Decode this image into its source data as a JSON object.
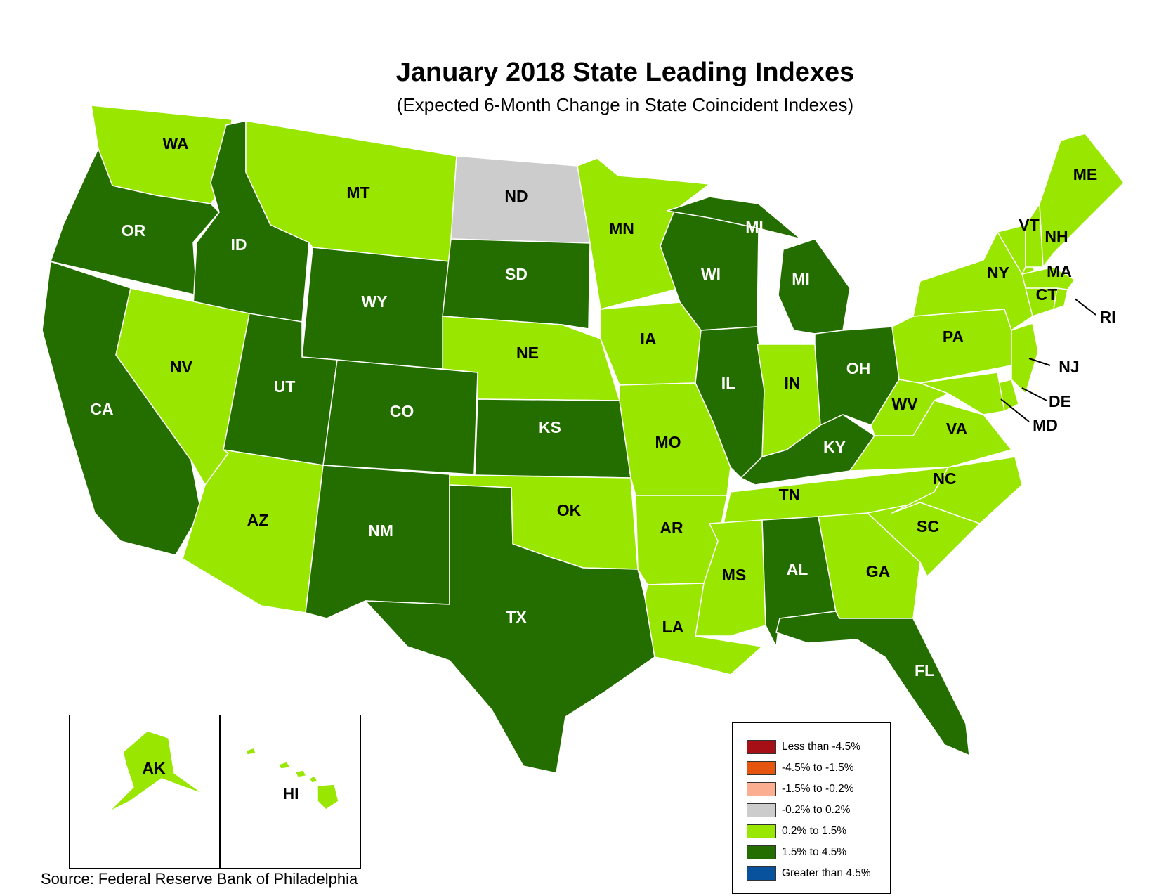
{
  "title": "January 2018 State Leading Indexes",
  "subtitle": "(Expected 6-Month Change in State Coincident Indexes)",
  "source": "Source: Federal Reserve Bank of Philadelphia",
  "colors": {
    "less_than_-4.5": "#a50f15",
    "-4.5_to_-1.5": "#e6550d",
    "-1.5_to_-0.2": "#fcae91",
    "-0.2_to_0.2": "#cccccc",
    "0.2_to_1.5": "#99e600",
    "1.5_to_4.5": "#246e00",
    "greater_than_4.5": "#08519c",
    "border": "#ffffff"
  },
  "legend": [
    {
      "label": "Less than -4.5%",
      "color": "#a50f15"
    },
    {
      "label": "-4.5% to -1.5%",
      "color": "#e6550d"
    },
    {
      "label": "-1.5% to -0.2%",
      "color": "#fcae91"
    },
    {
      "label": "-0.2% to 0.2%",
      "color": "#cccccc"
    },
    {
      "label": "0.2% to 1.5%",
      "color": "#99e600"
    },
    {
      "label": "1.5% to 4.5%",
      "color": "#246e00"
    },
    {
      "label": "Greater than 4.5%",
      "color": "#08519c"
    }
  ],
  "states": [
    {
      "id": "WA",
      "category": "0.2% to 1.5%"
    },
    {
      "id": "OR",
      "category": "1.5% to 4.5%"
    },
    {
      "id": "CA",
      "category": "1.5% to 4.5%"
    },
    {
      "id": "ID",
      "category": "1.5% to 4.5%"
    },
    {
      "id": "NV",
      "category": "0.2% to 1.5%"
    },
    {
      "id": "MT",
      "category": "0.2% to 1.5%"
    },
    {
      "id": "WY",
      "category": "1.5% to 4.5%"
    },
    {
      "id": "UT",
      "category": "1.5% to 4.5%"
    },
    {
      "id": "AZ",
      "category": "0.2% to 1.5%"
    },
    {
      "id": "CO",
      "category": "1.5% to 4.5%"
    },
    {
      "id": "NM",
      "category": "1.5% to 4.5%"
    },
    {
      "id": "ND",
      "category": "-0.2% to 0.2%"
    },
    {
      "id": "SD",
      "category": "1.5% to 4.5%"
    },
    {
      "id": "NE",
      "category": "0.2% to 1.5%"
    },
    {
      "id": "KS",
      "category": "1.5% to 4.5%"
    },
    {
      "id": "OK",
      "category": "0.2% to 1.5%"
    },
    {
      "id": "TX",
      "category": "1.5% to 4.5%"
    },
    {
      "id": "MN",
      "category": "0.2% to 1.5%"
    },
    {
      "id": "IA",
      "category": "0.2% to 1.5%"
    },
    {
      "id": "MO",
      "category": "0.2% to 1.5%"
    },
    {
      "id": "AR",
      "category": "0.2% to 1.5%"
    },
    {
      "id": "LA",
      "category": "0.2% to 1.5%"
    },
    {
      "id": "WI",
      "category": "1.5% to 4.5%"
    },
    {
      "id": "IL",
      "category": "1.5% to 4.5%"
    },
    {
      "id": "MI",
      "category": "1.5% to 4.5%"
    },
    {
      "id": "IN",
      "category": "0.2% to 1.5%"
    },
    {
      "id": "OH",
      "category": "1.5% to 4.5%"
    },
    {
      "id": "KY",
      "category": "1.5% to 4.5%"
    },
    {
      "id": "TN",
      "category": "0.2% to 1.5%"
    },
    {
      "id": "MS",
      "category": "0.2% to 1.5%"
    },
    {
      "id": "AL",
      "category": "1.5% to 4.5%"
    },
    {
      "id": "GA",
      "category": "0.2% to 1.5%"
    },
    {
      "id": "FL",
      "category": "1.5% to 4.5%"
    },
    {
      "id": "SC",
      "category": "0.2% to 1.5%"
    },
    {
      "id": "NC",
      "category": "0.2% to 1.5%"
    },
    {
      "id": "VA",
      "category": "0.2% to 1.5%"
    },
    {
      "id": "WV",
      "category": "0.2% to 1.5%"
    },
    {
      "id": "PA",
      "category": "0.2% to 1.5%"
    },
    {
      "id": "NY",
      "category": "0.2% to 1.5%"
    },
    {
      "id": "VT",
      "category": "0.2% to 1.5%"
    },
    {
      "id": "NH",
      "category": "0.2% to 1.5%"
    },
    {
      "id": "ME",
      "category": "0.2% to 1.5%"
    },
    {
      "id": "MA",
      "category": "0.2% to 1.5%"
    },
    {
      "id": "CT",
      "category": "0.2% to 1.5%"
    },
    {
      "id": "RI",
      "category": "0.2% to 1.5%"
    },
    {
      "id": "NJ",
      "category": "0.2% to 1.5%"
    },
    {
      "id": "DE",
      "category": "0.2% to 1.5%"
    },
    {
      "id": "MD",
      "category": "0.2% to 1.5%"
    },
    {
      "id": "AK",
      "category": "0.2% to 1.5%"
    },
    {
      "id": "HI",
      "category": "0.2% to 1.5%"
    }
  ],
  "labels": {
    "WA": "WA",
    "OR": "OR",
    "CA": "CA",
    "ID": "ID",
    "NV": "NV",
    "MT": "MT",
    "WY": "WY",
    "UT": "UT",
    "AZ": "AZ",
    "CO": "CO",
    "NM": "NM",
    "ND": "ND",
    "SD": "SD",
    "NE": "NE",
    "KS": "KS",
    "OK": "OK",
    "TX": "TX",
    "MN": "MN",
    "IA": "IA",
    "MO": "MO",
    "AR": "AR",
    "LA": "LA",
    "WI": "WI",
    "IL": "IL",
    "MI_upper": "MI",
    "MI_lower": "MI",
    "IN": "IN",
    "OH": "OH",
    "KY": "KY",
    "TN": "TN",
    "MS": "MS",
    "AL": "AL",
    "GA": "GA",
    "FL": "FL",
    "SC": "SC",
    "NC": "NC",
    "VA": "VA",
    "WV": "WV",
    "PA": "PA",
    "NY": "NY",
    "VT": "VT",
    "NH": "NH",
    "ME": "ME",
    "MA": "MA",
    "CT": "CT",
    "RI": "RI",
    "NJ": "NJ",
    "DE": "DE",
    "MD": "MD",
    "AK": "AK",
    "HI": "HI"
  }
}
